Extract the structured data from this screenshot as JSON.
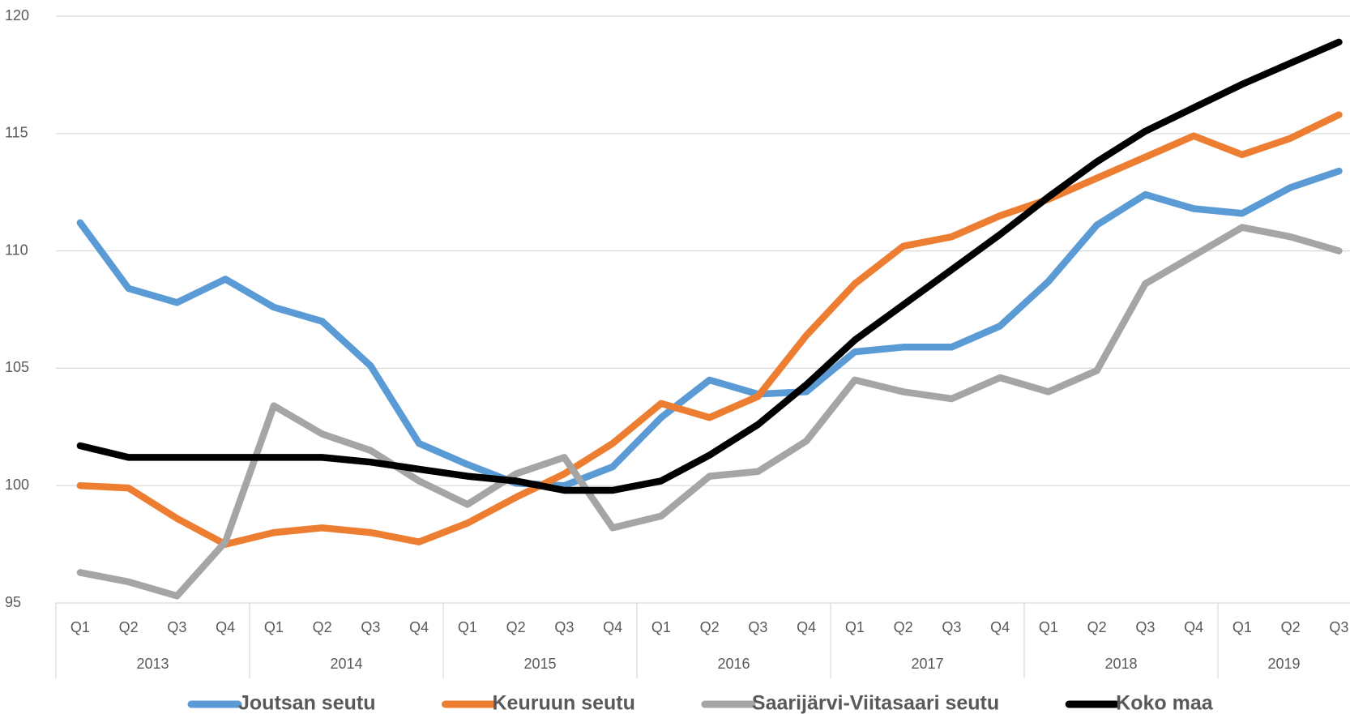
{
  "chart_data": {
    "type": "line",
    "groups": [
      {
        "label": "2013",
        "categories": [
          "Q1",
          "Q2",
          "Q3",
          "Q4"
        ]
      },
      {
        "label": "2014",
        "categories": [
          "Q1",
          "Q2",
          "Q3",
          "Q4"
        ]
      },
      {
        "label": "2015",
        "categories": [
          "Q1",
          "Q2",
          "Q3",
          "Q4"
        ]
      },
      {
        "label": "2016",
        "categories": [
          "Q1",
          "Q2",
          "Q3",
          "Q4"
        ]
      },
      {
        "label": "2017",
        "categories": [
          "Q1",
          "Q2",
          "Q3",
          "Q4"
        ]
      },
      {
        "label": "2018",
        "categories": [
          "Q1",
          "Q2",
          "Q3",
          "Q4"
        ]
      },
      {
        "label": "2019",
        "categories": [
          "Q1",
          "Q2",
          "Q3"
        ]
      }
    ],
    "series": [
      {
        "name": "Joutsan seutu",
        "color": "#5b9bd5",
        "values": [
          111.2,
          108.4,
          107.8,
          108.8,
          107.6,
          107.0,
          105.1,
          101.8,
          100.9,
          100.1,
          100.0,
          100.8,
          102.9,
          104.5,
          103.9,
          104.0,
          105.7,
          105.9,
          105.9,
          106.8,
          108.7,
          111.1,
          112.4,
          111.8,
          111.6,
          112.7,
          113.4
        ]
      },
      {
        "name": "Keuruun seutu",
        "color": "#ed7d31",
        "values": [
          100.0,
          99.9,
          98.6,
          97.5,
          98.0,
          98.2,
          98.0,
          97.6,
          98.4,
          99.5,
          100.5,
          101.8,
          103.5,
          102.9,
          103.8,
          106.4,
          108.6,
          110.2,
          110.6,
          111.5,
          112.2,
          113.1,
          114.0,
          114.9,
          114.1,
          114.8,
          115.8
        ]
      },
      {
        "name": "Saarijärvi-Viitasaari seutu",
        "color": "#a5a5a5",
        "values": [
          96.3,
          95.9,
          95.3,
          97.6,
          103.4,
          102.2,
          101.5,
          100.2,
          99.2,
          100.5,
          101.2,
          98.2,
          98.7,
          100.4,
          100.6,
          101.9,
          104.5,
          104.0,
          103.7,
          104.6,
          104.0,
          104.9,
          108.6,
          109.8,
          111.0,
          110.6,
          110.0
        ]
      },
      {
        "name": "Koko maa",
        "color": "#000000",
        "values": [
          101.7,
          101.2,
          101.2,
          101.2,
          101.2,
          101.2,
          101.0,
          100.7,
          100.4,
          100.2,
          99.8,
          99.8,
          100.2,
          101.3,
          102.6,
          104.3,
          106.2,
          107.7,
          109.2,
          110.7,
          112.3,
          113.8,
          115.1,
          116.1,
          117.1,
          118.0,
          118.9
        ]
      }
    ],
    "ylim": [
      95,
      120
    ],
    "yticks": [
      95,
      100,
      105,
      110,
      115,
      120
    ],
    "grid": true,
    "legend": "bottom"
  }
}
